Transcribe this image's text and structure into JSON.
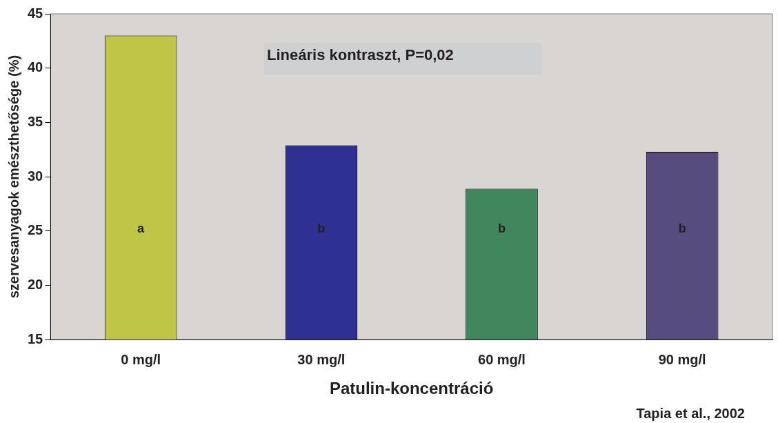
{
  "chart_data": {
    "type": "bar",
    "xlabel": "Patulin-koncentráció",
    "ylabel": "szervesanyagok emészthetősége (%)",
    "categories": [
      "0 mg/l",
      "30 mg/l",
      "60 mg/l",
      "90 mg/l"
    ],
    "values": [
      43.0,
      32.9,
      28.9,
      32.3
    ],
    "value_labels": [
      "a",
      "b",
      "b",
      "b"
    ],
    "colors": [
      "#bfc546",
      "#2e3192",
      "#41875d",
      "#574c7e"
    ],
    "ylim": [
      15,
      45
    ],
    "yticks": [
      15,
      20,
      25,
      30,
      35,
      40,
      45
    ],
    "grid": false,
    "legend": false,
    "annotations": [
      "Lineáris kontraszt, P=0,02",
      "Tapia et al., 2002"
    ]
  }
}
